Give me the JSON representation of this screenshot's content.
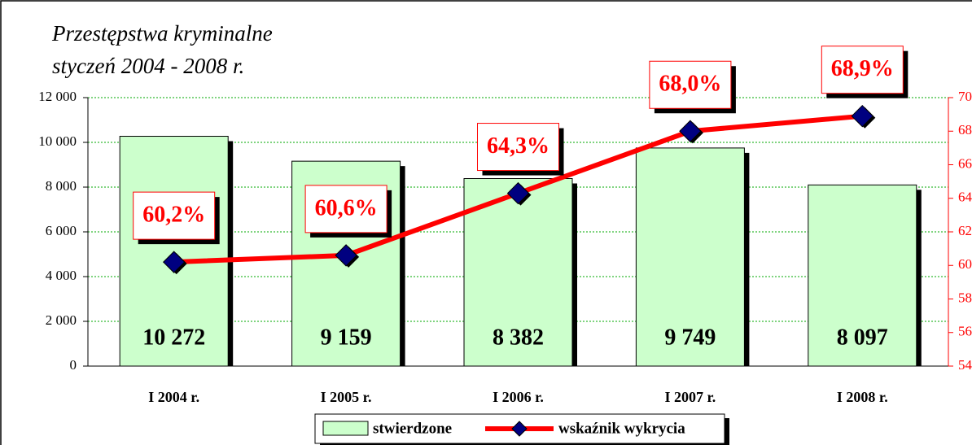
{
  "chart_data": {
    "type": "bar",
    "title": [
      "Przestępstwa kryminalne",
      "styczeń  2004 - 2008 r."
    ],
    "categories": [
      "I 2004 r.",
      "I 2005 r.",
      "I 2006 r.",
      "I 2007 r.",
      "I 2008 r."
    ],
    "series": [
      {
        "name": "stwierdzone",
        "color": "#ccffcc",
        "values": [
          10272,
          9159,
          8382,
          9749,
          8097
        ],
        "value_labels": [
          "10 272",
          "9 159",
          "8 382",
          "9 749",
          "8 097"
        ]
      },
      {
        "name": "wskaźnik wykrycia",
        "color": "#ff0000",
        "axis": "y2",
        "marker_color": "#000080",
        "values": [
          60.2,
          60.6,
          64.3,
          68.0,
          68.9
        ],
        "value_labels": [
          "60,2%",
          "60,6%",
          "64,3%",
          "68,0%",
          "68,9%"
        ]
      }
    ],
    "ylim": [
      0,
      12000
    ],
    "yticks": [
      0,
      {
        "value": 2000,
        "label": "2 000"
      },
      {
        "value": 4000,
        "label": "4 000"
      },
      {
        "value": 6000,
        "label": "6 000"
      },
      {
        "value": 8000,
        "label": "8 000"
      },
      {
        "value": 10000,
        "label": "10 000"
      },
      {
        "value": 12000,
        "label": "12 000"
      }
    ],
    "y2lim": [
      54,
      70
    ],
    "y2ticks": [
      54,
      56,
      58,
      60,
      62,
      64,
      66,
      68,
      70
    ],
    "grid": true,
    "legend": "bottom"
  }
}
